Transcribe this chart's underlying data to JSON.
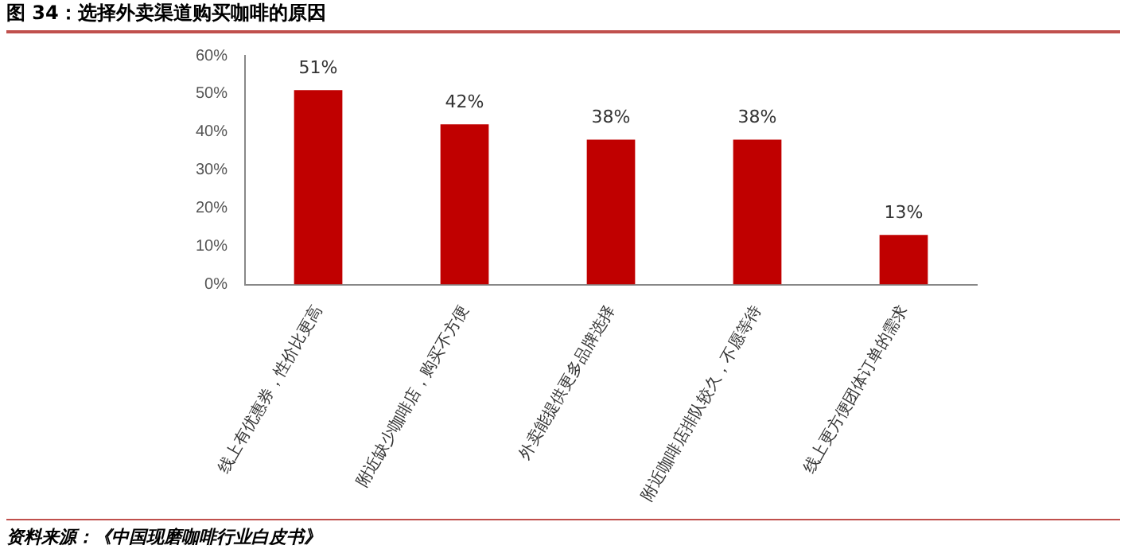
{
  "chart_data": {
    "type": "bar",
    "title": "图 34：选择外卖渠道购买咖啡的原因",
    "categories": [
      "线上有优惠券，性价比更高",
      "附近缺少咖啡店，购买不方便",
      "外卖能提供更多品牌选择",
      "附近咖啡店排队较久，不愿等待",
      "线上更方便团体订单的需求"
    ],
    "values": [
      51,
      42,
      38,
      38,
      13
    ],
    "color": "#c00000",
    "value_labels": [
      "51%",
      "42%",
      "38%",
      "38%",
      "13%"
    ],
    "ylim": [
      0,
      60
    ],
    "yticks": [
      {
        "value": 0,
        "label": "0%"
      },
      {
        "value": 10,
        "label": "10%"
      },
      {
        "value": 20,
        "label": "20%"
      },
      {
        "value": 30,
        "label": "30%"
      },
      {
        "value": 40,
        "label": "40%"
      },
      {
        "value": 50,
        "label": "50%"
      },
      {
        "value": 60,
        "label": "60%"
      }
    ],
    "grid": false,
    "legend": false,
    "annotations": [
      "资料来源：《中国现磨咖啡行业白皮书》"
    ]
  }
}
